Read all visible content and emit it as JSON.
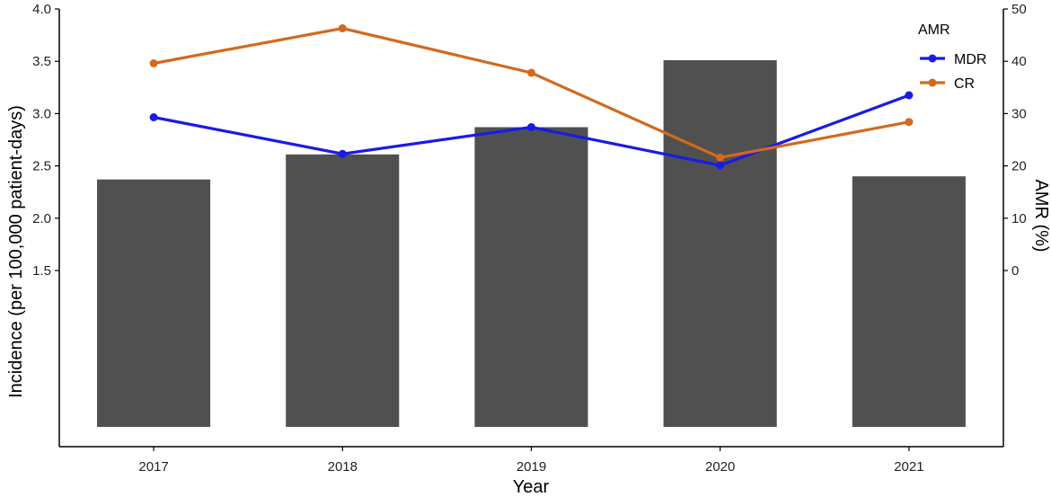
{
  "chart_data": {
    "type": "bar+line",
    "categories": [
      "2017",
      "2018",
      "2019",
      "2020",
      "2021"
    ],
    "bars": {
      "values": [
        2.37,
        2.61,
        2.87,
        3.51,
        2.4
      ],
      "color": "#505050"
    },
    "lines": [
      {
        "name": "MDR",
        "values": [
          29.3,
          22.3,
          27.4,
          20.1,
          33.5
        ],
        "color": "#1a1ae6"
      },
      {
        "name": "CR",
        "values": [
          39.6,
          46.3,
          37.8,
          21.6,
          28.4
        ],
        "color": "#d2691e"
      }
    ],
    "xlabel": "Year",
    "ylabel_left": "Incidence (per 100,000 patient-days)",
    "ylabel_right": "AMR (%)",
    "left_axis": {
      "ticks": [
        "1.5",
        "2.0",
        "2.5",
        "3.0",
        "3.5",
        "4.0"
      ],
      "ylim": [
        0,
        4.0
      ]
    },
    "right_axis": {
      "ticks": [
        "0",
        "10",
        "20",
        "30",
        "40",
        "50"
      ],
      "ylim": [
        0,
        50
      ]
    },
    "legend": {
      "title": "AMR",
      "position": "top-right"
    },
    "grid": false
  }
}
